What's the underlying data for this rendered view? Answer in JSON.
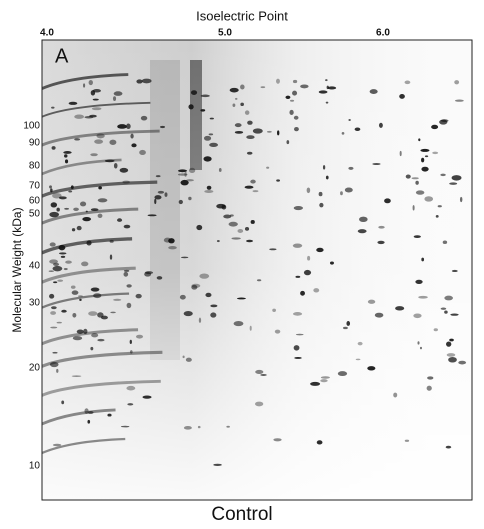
{
  "figure": {
    "panel": "A",
    "caption": "Control",
    "x_axis": {
      "title": "Isoelectric Point",
      "ticks": [
        "4.0",
        "5.0",
        "6.0"
      ]
    },
    "y_axis": {
      "title": "Molecular Weight (kDa)",
      "ticks": [
        "100",
        "90",
        "80",
        "70",
        "60",
        "50",
        "40",
        "30",
        "20",
        "10"
      ]
    }
  }
}
